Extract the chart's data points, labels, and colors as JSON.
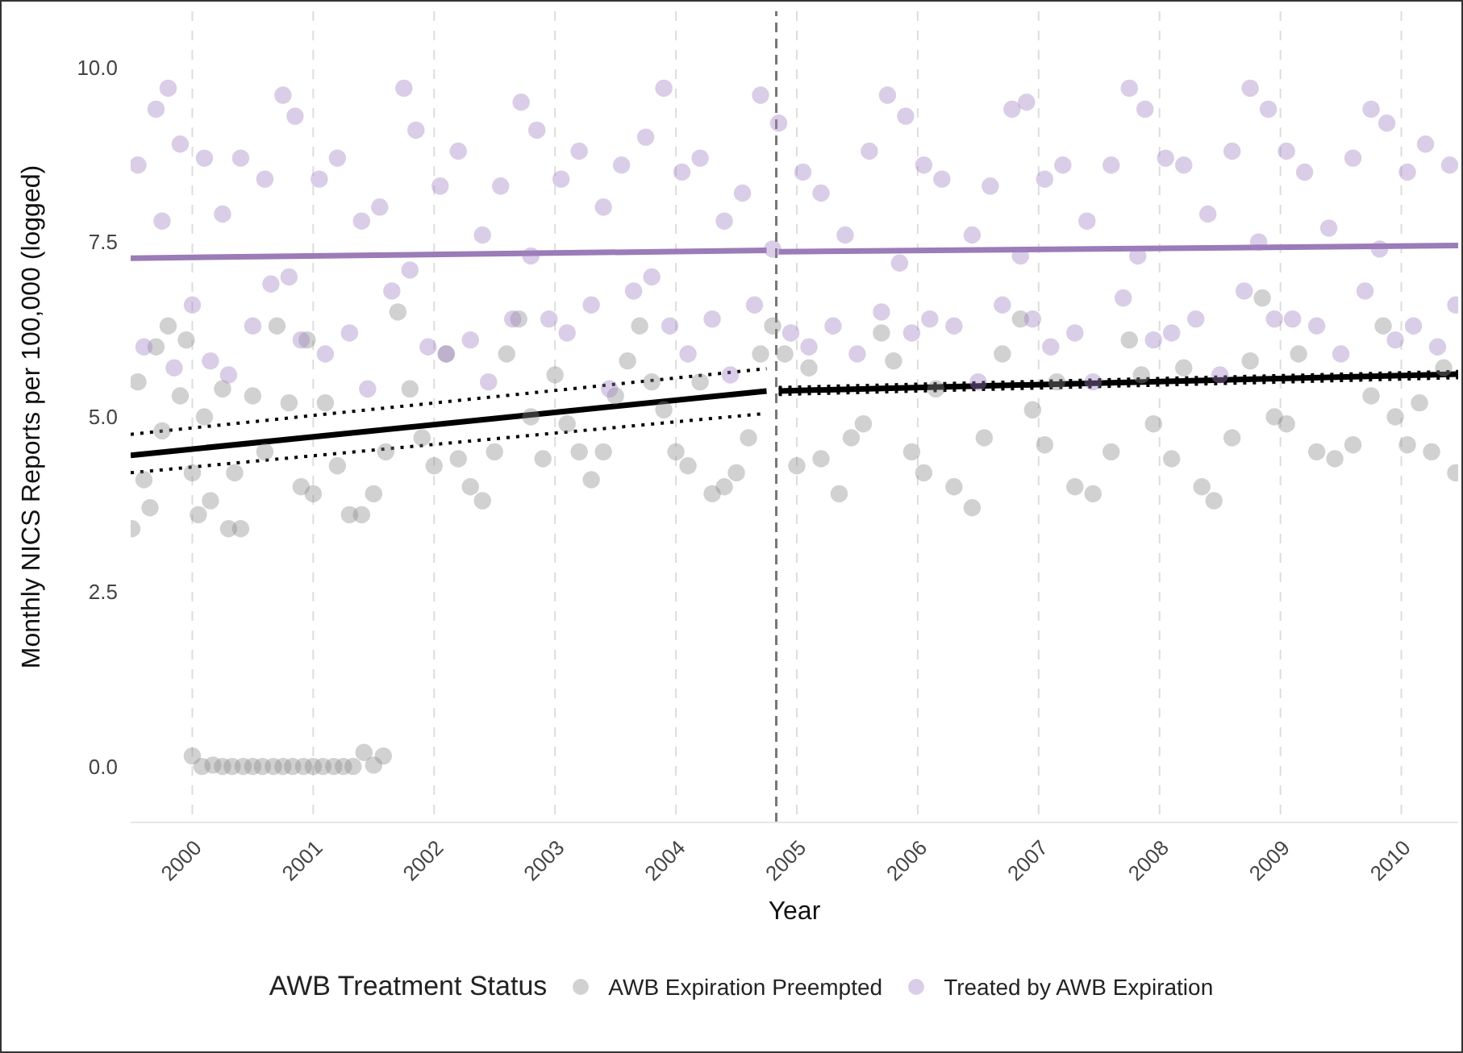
{
  "chart_data": {
    "type": "scatter",
    "xlabel": "Year",
    "ylabel": "Monthly NICS Reports per 100,000 (logged)",
    "legend_title": "AWB Treatment Status",
    "legend": "bottom",
    "grid": "x",
    "xlim": [
      1999.49,
      2010.47
    ],
    "xticks": [
      2000,
      2001,
      2002,
      2003,
      2004,
      2005,
      2006,
      2007,
      2008,
      2009,
      2010
    ],
    "ylim": [
      -0.8,
      10.8
    ],
    "yticks": [
      {
        "value": 0,
        "label": "0.0"
      },
      {
        "value": 2.5,
        "label": "2.5"
      },
      {
        "value": 5,
        "label": "5.0"
      },
      {
        "value": 7.5,
        "label": "7.5"
      },
      {
        "value": 10,
        "label": "10.0"
      }
    ],
    "ref_lines": [
      {
        "axis": "x",
        "value": 2004.83,
        "label": null,
        "color": "#777777",
        "line_style": "dashed"
      }
    ],
    "series": [
      {
        "name": "AWB Expiration Preempted",
        "marker": "circle",
        "color": "#8c8c8c",
        "x": [
          1999.5,
          1999.55,
          1999.6,
          1999.65,
          1999.7,
          1999.75,
          1999.8,
          1999.9,
          1999.95,
          2000.0,
          2000.05,
          2000.1,
          2000.15,
          2000.25,
          2000.3,
          2000.35,
          2000.4,
          2000.5,
          2000.6,
          2000.7,
          2000.8,
          2000.9,
          2000.95,
          2001.0,
          2001.1,
          2001.2,
          2001.3,
          2001.4,
          2001.5,
          2001.6,
          2001.7,
          2001.8,
          2001.9,
          2002.0,
          2002.1,
          2002.2,
          2002.3,
          2002.4,
          2002.5,
          2002.6,
          2002.7,
          2002.8,
          2002.9,
          2003.0,
          2003.1,
          2003.2,
          2003.3,
          2003.4,
          2003.5,
          2003.6,
          2003.7,
          2003.8,
          2003.9,
          2004.0,
          2004.1,
          2004.2,
          2004.3,
          2004.4,
          2004.5,
          2004.6,
          2004.7,
          2004.8,
          2004.9,
          2005.0,
          2005.1,
          2005.2,
          2005.35,
          2005.45,
          2005.55,
          2005.7,
          2005.8,
          2005.95,
          2006.05,
          2006.15,
          2006.3,
          2006.45,
          2006.55,
          2006.7,
          2006.85,
          2006.95,
          2007.05,
          2007.15,
          2007.3,
          2007.45,
          2007.6,
          2007.75,
          2007.85,
          2007.95,
          2008.1,
          2008.2,
          2008.35,
          2008.45,
          2008.6,
          2008.75,
          2008.85,
          2008.95,
          2009.05,
          2009.15,
          2009.3,
          2009.45,
          2009.6,
          2009.75,
          2009.85,
          2009.95,
          2010.05,
          2010.15,
          2010.25,
          2010.35,
          2010.45,
          2000.0,
          2000.08,
          2000.17,
          2000.25,
          2000.33,
          2000.42,
          2000.5,
          2000.58,
          2000.67,
          2000.75,
          2000.83,
          2000.92,
          2001.0,
          2001.08,
          2001.17,
          2001.25,
          2001.33,
          2001.42,
          2001.5,
          2001.58
        ],
        "values": [
          3.4,
          5.5,
          4.1,
          3.7,
          6.0,
          4.8,
          6.3,
          5.3,
          6.1,
          4.2,
          3.6,
          5.0,
          3.8,
          5.4,
          3.4,
          4.2,
          3.4,
          5.3,
          4.5,
          6.3,
          5.2,
          4.0,
          6.1,
          3.9,
          5.2,
          4.3,
          3.6,
          3.6,
          3.9,
          4.5,
          6.5,
          5.4,
          4.7,
          4.3,
          5.9,
          4.4,
          4.0,
          3.8,
          4.5,
          5.9,
          6.4,
          5.0,
          4.4,
          5.6,
          4.9,
          4.5,
          4.1,
          4.5,
          5.3,
          5.8,
          6.3,
          5.5,
          5.1,
          4.5,
          4.3,
          5.5,
          3.9,
          4.0,
          4.2,
          4.7,
          5.9,
          6.3,
          5.9,
          4.3,
          5.7,
          4.4,
          3.9,
          4.7,
          4.9,
          6.2,
          5.8,
          4.5,
          4.2,
          5.4,
          4.0,
          3.7,
          4.7,
          5.9,
          6.4,
          5.1,
          4.6,
          5.5,
          4.0,
          3.9,
          4.5,
          6.1,
          5.6,
          4.9,
          4.4,
          5.7,
          4.0,
          3.8,
          4.7,
          5.8,
          6.7,
          5.0,
          4.9,
          5.9,
          4.5,
          4.4,
          4.6,
          5.3,
          6.3,
          5.0,
          4.6,
          5.2,
          4.5,
          5.7,
          4.2,
          0.15,
          0,
          0.02,
          0,
          0,
          0,
          0,
          0,
          0,
          0,
          0,
          0,
          0,
          0,
          0,
          0,
          0,
          0.2,
          0.02,
          0.15
        ]
      },
      {
        "name": "Treated by AWB Expiration",
        "marker": "circle",
        "color": "#a383c4",
        "x": [
          1999.55,
          1999.6,
          1999.7,
          1999.75,
          1999.8,
          1999.85,
          1999.9,
          2000.0,
          2000.1,
          2000.15,
          2000.25,
          2000.3,
          2000.4,
          2000.5,
          2000.6,
          2000.65,
          2000.75,
          2000.8,
          2000.85,
          2000.9,
          2001.05,
          2001.1,
          2001.2,
          2001.3,
          2001.4,
          2001.45,
          2001.55,
          2001.65,
          2001.75,
          2001.8,
          2001.85,
          2001.95,
          2002.05,
          2002.1,
          2002.2,
          2002.3,
          2002.4,
          2002.45,
          2002.55,
          2002.65,
          2002.72,
          2002.8,
          2002.85,
          2002.95,
          2003.05,
          2003.1,
          2003.2,
          2003.3,
          2003.4,
          2003.45,
          2003.55,
          2003.65,
          2003.75,
          2003.8,
          2003.9,
          2003.95,
          2004.05,
          2004.1,
          2004.2,
          2004.3,
          2004.4,
          2004.45,
          2004.55,
          2004.65,
          2004.7,
          2004.8,
          2004.85,
          2004.95,
          2005.05,
          2005.1,
          2005.2,
          2005.3,
          2005.4,
          2005.5,
          2005.6,
          2005.7,
          2005.75,
          2005.85,
          2005.9,
          2005.95,
          2006.05,
          2006.1,
          2006.2,
          2006.3,
          2006.45,
          2006.5,
          2006.6,
          2006.7,
          2006.78,
          2006.85,
          2006.9,
          2006.95,
          2007.05,
          2007.1,
          2007.2,
          2007.3,
          2007.4,
          2007.45,
          2007.6,
          2007.7,
          2007.75,
          2007.82,
          2007.88,
          2007.95,
          2008.05,
          2008.1,
          2008.2,
          2008.3,
          2008.4,
          2008.5,
          2008.6,
          2008.7,
          2008.75,
          2008.82,
          2008.9,
          2008.95,
          2009.05,
          2009.1,
          2009.2,
          2009.3,
          2009.4,
          2009.5,
          2009.6,
          2009.7,
          2009.75,
          2009.82,
          2009.88,
          2009.95,
          2010.05,
          2010.1,
          2010.2,
          2010.3,
          2010.4,
          2010.45
        ],
        "values": [
          8.6,
          6.0,
          9.4,
          7.8,
          9.7,
          5.7,
          8.9,
          6.6,
          8.7,
          5.8,
          7.9,
          5.6,
          8.7,
          6.3,
          8.4,
          6.9,
          9.6,
          7.0,
          9.3,
          6.1,
          8.4,
          5.9,
          8.7,
          6.2,
          7.8,
          5.4,
          8.0,
          6.8,
          9.7,
          7.1,
          9.1,
          6.0,
          8.3,
          5.9,
          8.8,
          6.1,
          7.6,
          5.5,
          8.3,
          6.4,
          9.5,
          7.3,
          9.1,
          6.4,
          8.4,
          6.2,
          8.8,
          6.6,
          8.0,
          5.4,
          8.6,
          6.8,
          9.0,
          7.0,
          9.7,
          6.3,
          8.5,
          5.9,
          8.7,
          6.4,
          7.8,
          5.6,
          8.2,
          6.6,
          9.6,
          7.4,
          9.2,
          6.2,
          8.5,
          6.0,
          8.2,
          6.3,
          7.6,
          5.9,
          8.8,
          6.5,
          9.6,
          7.2,
          9.3,
          6.2,
          8.6,
          6.4,
          8.4,
          6.3,
          7.6,
          5.5,
          8.3,
          6.6,
          9.4,
          7.3,
          9.5,
          6.4,
          8.4,
          6.0,
          8.6,
          6.2,
          7.8,
          5.5,
          8.6,
          6.7,
          9.7,
          7.3,
          9.4,
          6.1,
          8.7,
          6.2,
          8.6,
          6.4,
          7.9,
          5.6,
          8.8,
          6.8,
          9.7,
          7.5,
          9.4,
          6.4,
          8.8,
          6.4,
          8.5,
          6.3,
          7.7,
          5.9,
          8.7,
          6.8,
          9.4,
          7.4,
          9.2,
          6.1,
          8.5,
          6.3,
          8.9,
          6.0,
          8.6,
          6.6
        ]
      },
      {
        "type": "line",
        "color": "#9b7bb8",
        "x": [
          1999.49,
          2004.75
        ],
        "values": [
          7.27,
          7.38
        ]
      },
      {
        "type": "line",
        "color": "#9b7bb8",
        "x": [
          2004.85,
          2010.47
        ],
        "values": [
          7.36,
          7.45
        ]
      },
      {
        "type": "line",
        "color": "#000000",
        "line_style": "dotted",
        "x": [
          1999.49,
          2004.75
        ],
        "values": [
          4.75,
          5.69
        ]
      },
      {
        "type": "line",
        "color": "#000000",
        "line_style": "dotted",
        "x": [
          1999.49,
          2004.75
        ],
        "values": [
          4.2,
          5.05
        ]
      },
      {
        "type": "line",
        "color": "#000000",
        "line_style": "dotted",
        "x": [
          2004.85,
          2010.47
        ],
        "values": [
          5.42,
          5.65
        ]
      },
      {
        "type": "line",
        "color": "#000000",
        "line_style": "dotted",
        "x": [
          2004.85,
          2010.47
        ],
        "values": [
          5.32,
          5.56
        ]
      },
      {
        "type": "line",
        "color": "#000000",
        "x": [
          1999.49,
          2004.75
        ],
        "values": [
          4.45,
          5.37
        ]
      },
      {
        "type": "line",
        "color": "#000000",
        "x": [
          2004.85,
          2010.47
        ],
        "values": [
          5.37,
          5.61
        ]
      }
    ]
  }
}
